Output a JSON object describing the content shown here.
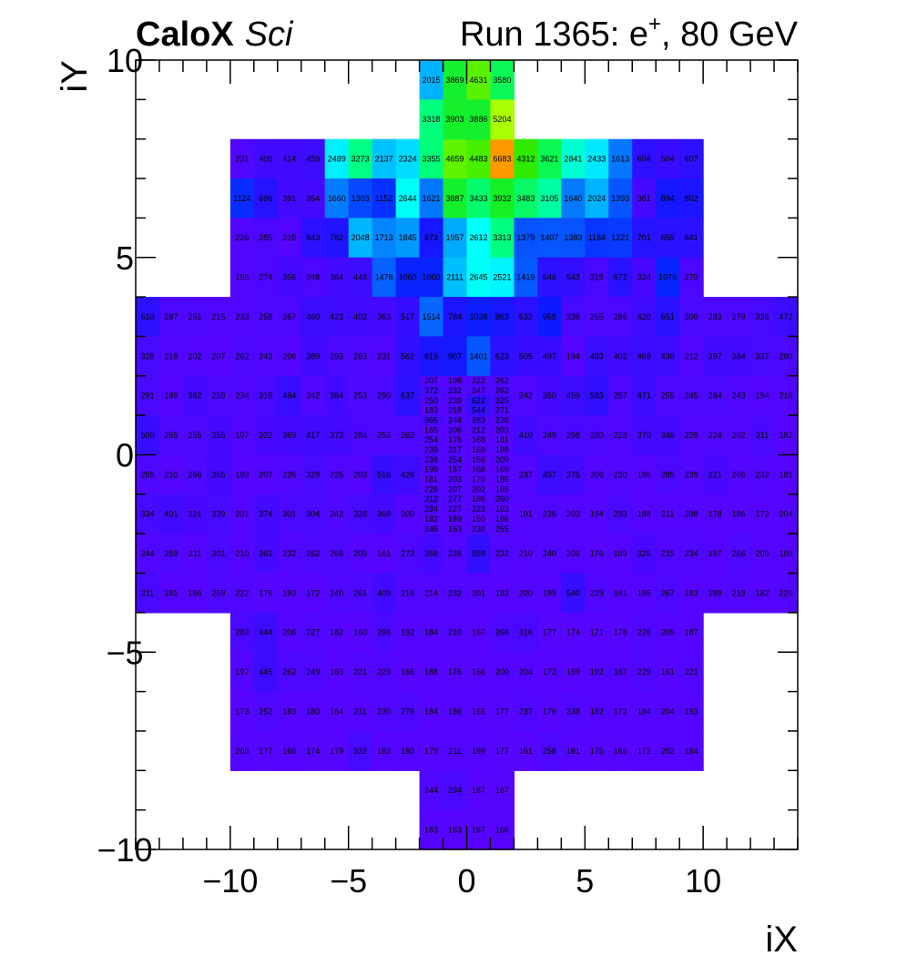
{
  "header": {
    "experiment": "CaloX",
    "subtitle": "Sci",
    "run_prefix": "Run 1365: e",
    "run_sup": "+",
    "run_suffix": ", 80 GeV"
  },
  "chart_data": {
    "type": "heatmap",
    "xlabel": "iX",
    "ylabel": "iY",
    "xlim": [
      -14,
      14
    ],
    "ylim": [
      -10,
      10
    ],
    "x_ticks": [
      -10,
      -5,
      0,
      5,
      10
    ],
    "y_ticks": [
      -10,
      -5,
      0,
      5,
      10
    ],
    "x_tick_labels": [
      "−10",
      "−5",
      "0",
      "5",
      "10"
    ],
    "y_tick_labels": [
      "−10",
      "−5",
      "0",
      "5",
      "10"
    ],
    "colormap": "kBird-like (purple → blue → cyan → green → yellow → orange)",
    "color_stops": [
      {
        "value": 0,
        "color": "#6600ff"
      },
      {
        "value": 1000,
        "color": "#0a1aff"
      },
      {
        "value": 2000,
        "color": "#00b0ff"
      },
      {
        "value": 2600,
        "color": "#00ffff"
      },
      {
        "value": 3300,
        "color": "#00ff80"
      },
      {
        "value": 4200,
        "color": "#20e800"
      },
      {
        "value": 5200,
        "color": "#aaff00"
      },
      {
        "value": 6700,
        "color": "#ff9900"
      }
    ],
    "big_rows": [
      {
        "iy": 7.5,
        "x0": -10,
        "values": [
          231,
          409,
          414,
          459,
          2489,
          3273,
          2137,
          2324,
          3355,
          4659,
          4483,
          6683,
          4312,
          3621,
          2841,
          2433,
          1613,
          604,
          504,
          607
        ]
      },
      {
        "iy": 6.5,
        "x0": -10,
        "values": [
          1124,
          696,
          391,
          354,
          1660,
          1303,
          1152,
          2644,
          1621,
          3887,
          3433,
          3932,
          3483,
          3105,
          1640,
          2024,
          1393,
          361,
          894,
          802
        ]
      },
      {
        "iy": 5.5,
        "x0": -10,
        "values": [
          226,
          285,
          219,
          643,
          762,
          2048,
          1713,
          1845,
          873,
          1957,
          2612,
          3313,
          1379,
          1407,
          1383,
          1184,
          1221,
          701,
          655,
          641
        ]
      },
      {
        "iy": 4.5,
        "x0": -10,
        "values": [
          195,
          274,
          356,
          248,
          384,
          448,
          1478,
          1060,
          1060,
          2111,
          2645,
          2521,
          1419,
          646,
          543,
          319,
          672,
          324,
          1076,
          270
        ]
      },
      {
        "iy": 3.5,
        "x0": -14,
        "values": [
          610,
          287,
          251,
          215,
          233,
          258,
          267,
          460,
          423,
          402,
          363,
          517,
          1514,
          784,
          1028,
          863,
          632,
          958,
          336,
          255,
          286,
          420,
          651,
          300,
          283,
          279,
          336,
          472
        ]
      },
      {
        "iy": 2.5,
        "x0": -14,
        "values": [
          328,
          218,
          202,
          207,
          262,
          243,
          208,
          389,
          293,
          263,
          231,
          562,
          819,
          907,
          1401,
          623,
          505,
          497,
          194,
          483,
          402,
          469,
          430,
          212,
          397,
          384,
          337,
          280
        ]
      },
      {
        "iy": 1.5,
        "x0": -14,
        "values": [
          291,
          189,
          382,
          259,
          234,
          319,
          484,
          242,
          384,
          253,
          290,
          637,
          null,
          null,
          null,
          null,
          242,
          350,
          459,
          583,
          257,
          471,
          255,
          245,
          284,
          243,
          194,
          216
        ]
      },
      {
        "iy": 0.5,
        "x0": -14,
        "values": [
          500,
          265,
          255,
          355,
          197,
          322,
          369,
          417,
          373,
          284,
          252,
          262,
          null,
          null,
          null,
          null,
          410,
          249,
          298,
          280,
          228,
          370,
          346,
          228,
          224,
          202,
          311,
          182
        ]
      },
      {
        "iy": -0.5,
        "x0": -14,
        "values": [
          255,
          210,
          266,
          365,
          193,
          207,
          226,
          329,
          225,
          203,
          516,
          426,
          null,
          null,
          null,
          null,
          237,
          457,
          375,
          206,
          230,
          196,
          285,
          239,
          321,
          206,
          232,
          181
        ]
      },
      {
        "iy": -1.5,
        "x0": -14,
        "values": [
          334,
          401,
          321,
          339,
          201,
          374,
          301,
          304,
          242,
          328,
          368,
          200,
          null,
          null,
          null,
          null,
          191,
          236,
          203,
          194,
          293,
          188,
          211,
          208,
          178,
          186,
          172,
          204
        ]
      },
      {
        "iy": -2.5,
        "x0": -14,
        "values": [
          244,
          259,
          211,
          301,
          210,
          361,
          232,
          262,
          265,
          205,
          161,
          273,
          358,
          235,
          559,
          232,
          210,
          240,
          206,
          176,
          189,
          326,
          215,
          234,
          197,
          266,
          205,
          189
        ]
      },
      {
        "iy": -3.5,
        "x0": -14,
        "values": [
          311,
          181,
          186,
          259,
          222,
          176,
          193,
          172,
          240,
          261,
          409,
          216,
          214,
          232,
          201,
          183,
          200,
          199,
          540,
          229,
          181,
          195,
          267,
          183,
          199,
          219,
          182,
          220
        ]
      },
      {
        "iy": -4.5,
        "x0": -10,
        "values": [
          283,
          444,
          206,
          227,
          182,
          160,
          298,
          192,
          184,
          210,
          167,
          268,
          316,
          177,
          174,
          171,
          178,
          226,
          209,
          187
        ]
      },
      {
        "iy": -5.5,
        "x0": -10,
        "values": [
          197,
          445,
          262,
          249,
          163,
          221,
          229,
          166,
          188,
          176,
          166,
          200,
          204,
          172,
          159,
          192,
          187,
          229,
          161,
          221
        ]
      },
      {
        "iy": -6.5,
        "x0": -10,
        "values": [
          173,
          252,
          183,
          180,
          164,
          211,
          230,
          276,
          184,
          186,
          165,
          177,
          237,
          176,
          238,
          182,
          172,
          184,
          204,
          193
        ]
      },
      {
        "iy": -7.5,
        "x0": -10,
        "values": [
          205,
          177,
          169,
          174,
          179,
          332,
          183,
          180,
          179,
          211,
          199,
          177,
          161,
          258,
          181,
          175,
          166,
          172,
          202,
          184
        ]
      }
    ],
    "top_rows": [
      {
        "iy": 9.5,
        "x0": -2,
        "values": [
          2015,
          3869,
          4631,
          3580
        ]
      },
      {
        "iy": 8.5,
        "x0": -2,
        "values": [
          3318,
          3903,
          3886,
          5204
        ]
      }
    ],
    "bottom_rows": [
      {
        "iy": -8.5,
        "x0": -2,
        "values": [
          244,
          294,
          167,
          167
        ]
      },
      {
        "iy": -9.5,
        "x0": -2,
        "values": [
          183,
          163,
          167,
          166
        ]
      }
    ],
    "fine_rows": [
      {
        "iy": 1.875,
        "x0": -2,
        "values": [
          207,
          198,
          222,
          262
        ]
      },
      {
        "iy": 1.625,
        "x0": -2,
        "values": [
          372,
          232,
          247,
          262
        ]
      },
      {
        "iy": 1.375,
        "x0": -2,
        "values": [
          250,
          239,
          622,
          325
        ]
      },
      {
        "iy": 1.125,
        "x0": -2,
        "values": [
          183,
          218,
          544,
          271
        ]
      },
      {
        "iy": 0.875,
        "x0": -2,
        "values": [
          365,
          244,
          283,
          236
        ]
      },
      {
        "iy": 0.625,
        "x0": -2,
        "values": [
          165,
          206,
          212,
          203
        ]
      },
      {
        "iy": 0.375,
        "x0": -2,
        "values": [
          254,
          176,
          168,
          181
        ]
      },
      {
        "iy": 0.125,
        "x0": -2,
        "values": [
          239,
          217,
          169,
          198
        ]
      },
      {
        "iy": -0.125,
        "x0": -2,
        "values": [
          238,
          254,
          156,
          209
        ]
      },
      {
        "iy": -0.375,
        "x0": -2,
        "values": [
          199,
          187,
          168,
          169
        ]
      },
      {
        "iy": -0.625,
        "x0": -2,
        "values": [
          181,
          203,
          170,
          185
        ]
      },
      {
        "iy": -0.875,
        "x0": -2,
        "values": [
          226,
          207,
          202,
          165
        ]
      },
      {
        "iy": -1.125,
        "x0": -2,
        "values": [
          312,
          277,
          186,
          260
        ]
      },
      {
        "iy": -1.375,
        "x0": -2,
        "values": [
          234,
          227,
          223,
          163
        ]
      },
      {
        "iy": -1.625,
        "x0": -2,
        "values": [
          182,
          189,
          150,
          186
        ]
      },
      {
        "iy": -1.875,
        "x0": -2,
        "values": [
          246,
          163,
          230,
          255
        ]
      }
    ]
  }
}
